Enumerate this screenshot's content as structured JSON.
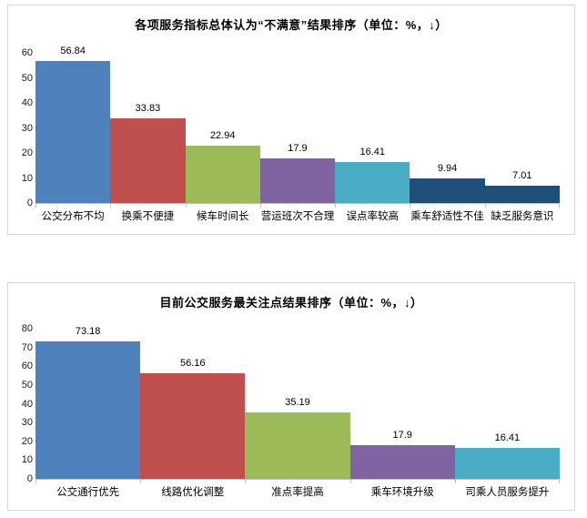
{
  "page": {
    "background": "#ffffff",
    "panel_border": "#d5d5d5",
    "axis_line_color": "#bfbfbf",
    "text_color": "#000000"
  },
  "chart_data": [
    {
      "type": "bar",
      "title": "各项服务指标总体认为“不满意”结果排序（单位：%，↓）",
      "categories": [
        "公交分布不均",
        "换乘不便捷",
        "候车时间长",
        "营运班次不合理",
        "误点率较高",
        "乘车舒适性不佳",
        "缺乏服务意识"
      ],
      "values": [
        56.84,
        33.83,
        22.94,
        17.9,
        16.41,
        9.94,
        7.01
      ],
      "value_labels": [
        "56.84",
        "33.83",
        "22.94",
        "17.9",
        "16.41",
        "9.94",
        "7.01"
      ],
      "bar_colors": [
        "#4F81BD",
        "#C0504D",
        "#9BBB59",
        "#8064A2",
        "#4BACC6",
        "#1F4E79",
        "#1F4E79"
      ],
      "xlabel": "",
      "ylabel": "",
      "ylim": [
        0,
        60
      ],
      "yticks": [
        0,
        10,
        20,
        30,
        40,
        50,
        60
      ],
      "grid": false,
      "legend_position": "none",
      "bar_gap": 0
    },
    {
      "type": "bar",
      "title": "目前公交服务最关注点结果排序（单位：%，↓）",
      "categories": [
        "公交通行优先",
        "线路优化调整",
        "准点率提高",
        "乘车环境升级",
        "司乘人员服务提升"
      ],
      "values": [
        73.18,
        56.16,
        35.19,
        17.9,
        16.41
      ],
      "value_labels": [
        "73.18",
        "56.16",
        "35.19",
        "17.9",
        "16.41"
      ],
      "bar_colors": [
        "#4F81BD",
        "#C0504D",
        "#9BBB59",
        "#8064A2",
        "#4BACC6"
      ],
      "xlabel": "",
      "ylabel": "",
      "ylim": [
        0,
        80
      ],
      "yticks": [
        0,
        10,
        20,
        30,
        40,
        50,
        60,
        70,
        80
      ],
      "grid": false,
      "legend_position": "none",
      "bar_gap": 0
    }
  ]
}
